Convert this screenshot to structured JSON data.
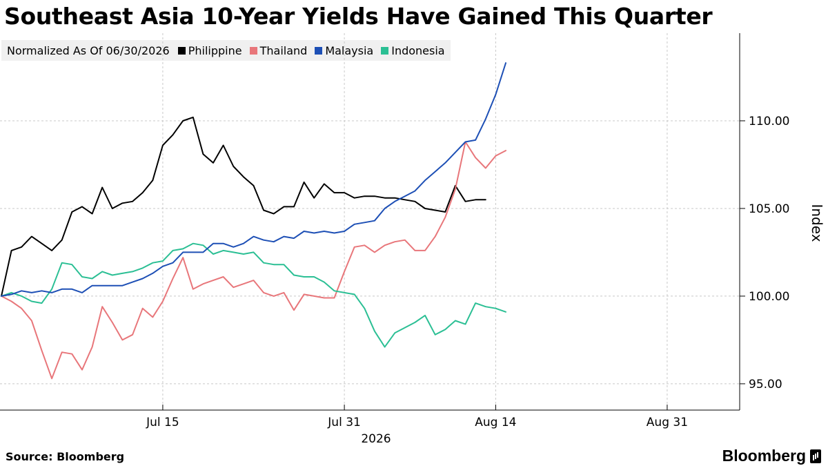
{
  "title": "Southeast Asia 10-Year Yields Have Gained This Quarter",
  "legend_note": "Normalized As Of 06/30/2026",
  "source": "Source: Bloomberg",
  "brand": "Bloomberg",
  "chart_data": {
    "type": "line",
    "ylabel": "Index",
    "xlabel": "2026",
    "ylim": [
      93.5,
      115.0
    ],
    "y_ticks": [
      95,
      100,
      105,
      110
    ],
    "y_tick_labels": [
      "95.00",
      "100.00",
      "105.00",
      "110.00"
    ],
    "x_tick_labels": [
      "Jul 15",
      "Jul 31",
      "Aug 14",
      "Aug 31"
    ],
    "x_tick_index": [
      16,
      34,
      49,
      66
    ],
    "n_points": 78,
    "grid": true,
    "legend_position": "top-left",
    "series": [
      {
        "name": "Philippine",
        "color": "#000000",
        "values": [
          100.0,
          102.6,
          102.8,
          103.4,
          103.0,
          102.6,
          103.2,
          104.8,
          105.1,
          104.7,
          106.2,
          105.0,
          105.3,
          105.4,
          105.9,
          106.6,
          108.6,
          109.2,
          110.0,
          110.2,
          108.1,
          107.6,
          108.6,
          107.4,
          106.8,
          106.3,
          104.9,
          104.7,
          105.1,
          105.1,
          106.5,
          105.6,
          106.4,
          105.9,
          105.9,
          105.6,
          105.7,
          105.7,
          105.6,
          105.6,
          105.5,
          105.4,
          105.0,
          104.9,
          104.8,
          106.3,
          105.4,
          105.5,
          105.5
        ]
      },
      {
        "name": "Thailand",
        "color": "#e8767a",
        "values": [
          100.0,
          99.7,
          99.3,
          98.6,
          96.9,
          95.3,
          96.8,
          96.7,
          95.8,
          97.1,
          99.4,
          98.5,
          97.5,
          97.8,
          99.3,
          98.8,
          99.7,
          101.0,
          102.2,
          100.4,
          100.7,
          100.9,
          101.1,
          100.5,
          100.7,
          100.9,
          100.2,
          100.0,
          100.2,
          99.2,
          100.1,
          100.0,
          99.9,
          99.9,
          101.4,
          102.8,
          102.9,
          102.5,
          102.9,
          103.1,
          103.2,
          102.6,
          102.6,
          103.4,
          104.5,
          106.1,
          108.8,
          107.9,
          107.3,
          108.0,
          108.3
        ]
      },
      {
        "name": "Malaysia",
        "color": "#1d4fb5",
        "values": [
          100.0,
          100.1,
          100.3,
          100.2,
          100.3,
          100.2,
          100.4,
          100.4,
          100.2,
          100.6,
          100.6,
          100.6,
          100.6,
          100.8,
          101.0,
          101.3,
          101.7,
          101.9,
          102.5,
          102.5,
          102.5,
          103.0,
          103.0,
          102.8,
          103.0,
          103.4,
          103.2,
          103.1,
          103.4,
          103.3,
          103.7,
          103.6,
          103.7,
          103.6,
          103.7,
          104.1,
          104.2,
          104.3,
          105.0,
          105.4,
          105.7,
          106.0,
          106.6,
          107.1,
          107.6,
          108.2,
          108.8,
          108.9,
          110.1,
          111.5,
          113.3
        ]
      },
      {
        "name": "Indonesia",
        "color": "#2bbf94",
        "values": [
          100.0,
          100.2,
          100.0,
          99.7,
          99.6,
          100.4,
          101.9,
          101.8,
          101.1,
          101.0,
          101.4,
          101.2,
          101.3,
          101.4,
          101.6,
          101.9,
          102.0,
          102.6,
          102.7,
          103.0,
          102.9,
          102.4,
          102.6,
          102.5,
          102.4,
          102.5,
          101.9,
          101.8,
          101.8,
          101.2,
          101.1,
          101.1,
          100.8,
          100.3,
          100.2,
          100.1,
          99.3,
          98.0,
          97.1,
          97.9,
          98.2,
          98.5,
          98.9,
          97.8,
          98.1,
          98.6,
          98.4,
          99.6,
          99.4,
          99.3,
          99.1
        ]
      }
    ]
  }
}
